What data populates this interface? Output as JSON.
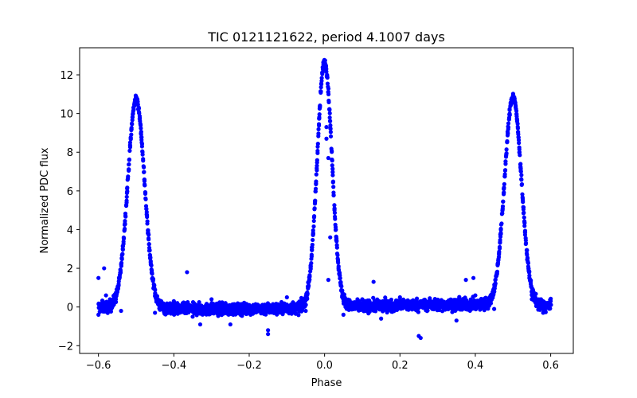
{
  "chart_data": {
    "type": "scatter",
    "title": "TIC 0121121622, period 4.1007 days",
    "xlabel": "Phase",
    "ylabel": "Normalized PDC flux",
    "xlim": [
      -0.65,
      0.66
    ],
    "ylim": [
      -2.4,
      13.4
    ],
    "xticks": [
      {
        "value": -0.6,
        "label": "−0.6"
      },
      {
        "value": -0.4,
        "label": "−0.4"
      },
      {
        "value": -0.2,
        "label": "−0.2"
      },
      {
        "value": 0.0,
        "label": "0.0"
      },
      {
        "value": 0.2,
        "label": "0.2"
      },
      {
        "value": 0.4,
        "label": "0.4"
      },
      {
        "value": 0.6,
        "label": "0.6"
      }
    ],
    "yticks": [
      {
        "value": -2,
        "label": "−2"
      },
      {
        "value": 0,
        "label": "0"
      },
      {
        "value": 2,
        "label": "2"
      },
      {
        "value": 4,
        "label": "4"
      },
      {
        "value": 6,
        "label": "6"
      },
      {
        "value": 8,
        "label": "8"
      },
      {
        "value": 10,
        "label": "10"
      },
      {
        "value": 12,
        "label": "12"
      }
    ],
    "grid": false,
    "marker_color": "#0000ff",
    "series": [
      {
        "name": "flux",
        "note": "phase-folded light curve with three primary eclipse-like peaks",
        "peaks": [
          {
            "center": -0.5,
            "height": 10.8,
            "width": 0.033
          },
          {
            "center": 0.0,
            "height": 12.7,
            "width": 0.029
          },
          {
            "center": 0.5,
            "height": 10.8,
            "width": 0.033
          }
        ],
        "baseline_points": [
          [
            -0.6,
            -0.4
          ],
          [
            -0.58,
            0.6
          ],
          [
            -0.56,
            0.3
          ],
          [
            -0.54,
            -0.2
          ],
          [
            -0.45,
            -0.3
          ],
          [
            -0.4,
            0.3
          ],
          [
            -0.35,
            -0.5
          ],
          [
            -0.3,
            0.4
          ],
          [
            -0.25,
            -0.9
          ],
          [
            -0.2,
            0.1
          ],
          [
            -0.15,
            -1.2
          ],
          [
            -0.1,
            0.5
          ],
          [
            -0.05,
            -0.2
          ],
          [
            0.05,
            -0.4
          ],
          [
            0.1,
            0.4
          ],
          [
            0.15,
            -0.6
          ],
          [
            0.2,
            0.5
          ],
          [
            0.25,
            -1.5
          ],
          [
            0.3,
            0.2
          ],
          [
            0.35,
            -0.7
          ],
          [
            0.4,
            0.6
          ],
          [
            0.45,
            -0.1
          ],
          [
            0.55,
            0.4
          ],
          [
            0.58,
            -0.3
          ],
          [
            0.6,
            0.3
          ]
        ],
        "outliers": [
          [
            -0.585,
            2.0
          ],
          [
            -0.6,
            1.5
          ],
          [
            -0.365,
            1.8
          ],
          [
            0.005,
            9.3
          ],
          [
            0.005,
            8.7
          ],
          [
            0.01,
            7.7
          ],
          [
            0.015,
            3.6
          ],
          [
            0.01,
            1.4
          ],
          [
            0.395,
            1.5
          ],
          [
            0.375,
            1.4
          ],
          [
            0.255,
            -1.6
          ],
          [
            -0.33,
            -0.9
          ],
          [
            -0.15,
            -1.4
          ],
          [
            0.13,
            1.3
          ]
        ]
      }
    ]
  }
}
